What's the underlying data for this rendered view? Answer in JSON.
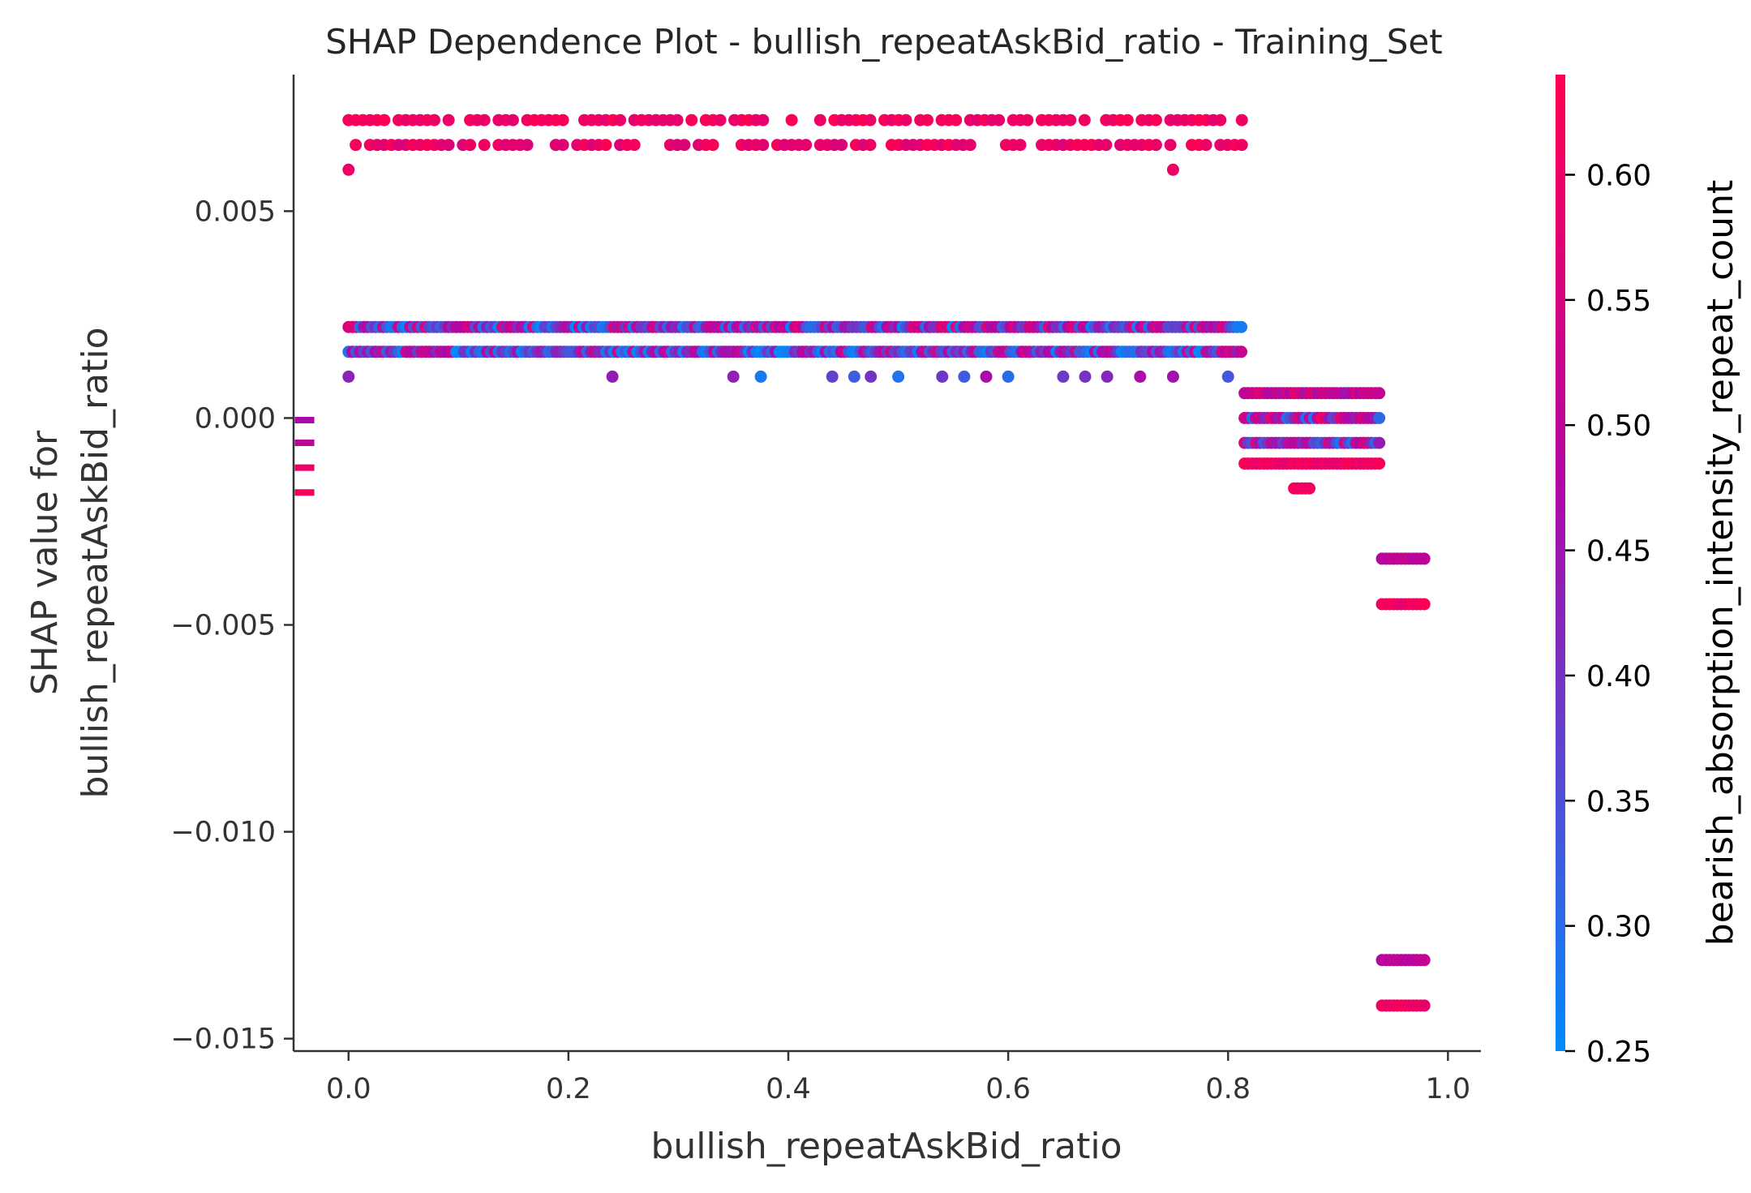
{
  "chart_data": {
    "type": "scatter",
    "title": "SHAP Dependence Plot - bullish_repeatAskBid_ratio - Training_Set",
    "xlabel": "bullish_repeatAskBid_ratio",
    "ylabel_line1": "SHAP value for",
    "ylabel_line2": "bullish_repeatAskBid_ratio",
    "xlim": [
      -0.05,
      1.03
    ],
    "ylim": [
      -0.0153,
      0.0083
    ],
    "x_ticks": [
      {
        "value": 0.0,
        "label": "0.0"
      },
      {
        "value": 0.2,
        "label": "0.2"
      },
      {
        "value": 0.4,
        "label": "0.4"
      },
      {
        "value": 0.6,
        "label": "0.6"
      },
      {
        "value": 0.8,
        "label": "0.8"
      },
      {
        "value": 1.0,
        "label": "1.0"
      }
    ],
    "y_ticks": [
      {
        "value": 0.005,
        "label": "0.005"
      },
      {
        "value": 0.0,
        "label": "0.000"
      },
      {
        "value": -0.005,
        "label": "−0.005"
      },
      {
        "value": -0.01,
        "label": "−0.010"
      },
      {
        "value": -0.015,
        "label": "−0.015"
      }
    ],
    "colorbar": {
      "label": "bearish_absorption_intensity_repeat_count",
      "range": [
        0.25,
        0.64
      ],
      "ticks": [
        {
          "value": 0.25,
          "label": "0.25"
        },
        {
          "value": 0.3,
          "label": "0.30"
        },
        {
          "value": 0.35,
          "label": "0.35"
        },
        {
          "value": 0.4,
          "label": "0.40"
        },
        {
          "value": 0.45,
          "label": "0.45"
        },
        {
          "value": 0.5,
          "label": "0.50"
        },
        {
          "value": 0.55,
          "label": "0.55"
        },
        {
          "value": 0.6,
          "label": "0.60"
        }
      ],
      "color_low": "#008afb",
      "color_mid": "#b106a5",
      "color_high": "#ff0052"
    },
    "missing_values": {
      "x": -0.04,
      "y_values": [
        -5e-05,
        -0.0006,
        -0.0012,
        -0.0018
      ],
      "colors": [
        0.47,
        0.5,
        0.6,
        0.62
      ]
    },
    "series": [
      {
        "y": 0.0072,
        "x_range": [
          0.0,
          0.815
        ],
        "color_range": [
          0.58,
          0.64
        ],
        "density": "medium"
      },
      {
        "y": 0.0066,
        "x_range": [
          0.0,
          0.815
        ],
        "color_range": [
          0.56,
          0.64
        ],
        "density": "medium"
      },
      {
        "y": 0.006,
        "x_points": [
          0.0,
          0.75
        ],
        "color": 0.6
      },
      {
        "y": 0.0022,
        "x_range": [
          0.0,
          0.815
        ],
        "color_range": [
          0.25,
          0.58
        ],
        "density": "high"
      },
      {
        "y": 0.0016,
        "x_range": [
          0.0,
          0.815
        ],
        "color_range": [
          0.25,
          0.55
        ],
        "density": "high"
      },
      {
        "y": 0.001,
        "x_points": [
          0.0,
          0.24,
          0.35,
          0.375,
          0.44,
          0.46,
          0.475,
          0.5,
          0.54,
          0.56,
          0.58,
          0.6,
          0.65,
          0.67,
          0.69,
          0.72,
          0.75,
          0.8
        ],
        "color_range": [
          0.27,
          0.48
        ]
      },
      {
        "y": 0.0006,
        "x_range": [
          0.815,
          0.94
        ],
        "color_range": [
          0.45,
          0.58
        ],
        "density": "high"
      },
      {
        "y": 0.0,
        "x_range": [
          0.815,
          0.94
        ],
        "color_range": [
          0.28,
          0.64
        ],
        "density": "high"
      },
      {
        "y": -0.0006,
        "x_range": [
          0.815,
          0.94
        ],
        "color_range": [
          0.28,
          0.58
        ],
        "density": "high"
      },
      {
        "y": -0.0011,
        "x_range": [
          0.815,
          0.94
        ],
        "color_range": [
          0.58,
          0.64
        ],
        "density": "high"
      },
      {
        "y": -0.0017,
        "x_range": [
          0.86,
          0.875
        ],
        "color_range": [
          0.6,
          0.64
        ],
        "density": "high"
      },
      {
        "y": -0.0034,
        "x_range": [
          0.94,
          0.98
        ],
        "color_range": [
          0.48,
          0.52
        ],
        "density": "high"
      },
      {
        "y": -0.0045,
        "x_range": [
          0.94,
          0.98
        ],
        "color_range": [
          0.58,
          0.64
        ],
        "density": "high"
      },
      {
        "y": -0.0131,
        "x_range": [
          0.94,
          0.98
        ],
        "color_range": [
          0.48,
          0.52
        ],
        "density": "high"
      },
      {
        "y": -0.0142,
        "x_range": [
          0.94,
          0.98
        ],
        "color_range": [
          0.58,
          0.64
        ],
        "density": "high"
      }
    ]
  }
}
